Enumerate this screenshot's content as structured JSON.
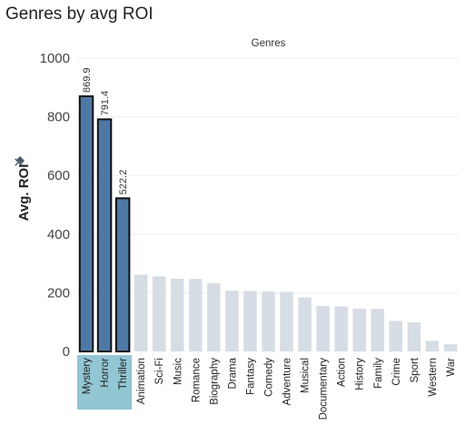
{
  "title": "Genres by avg ROI",
  "pin_icon": "pin-icon",
  "colors": {
    "highlight_bar": "#4e79a7",
    "highlight_stroke": "#111111",
    "dim_bar": "#d6dde4",
    "selected_header_bg": "#93c6d3",
    "grid": "#eeeeee"
  },
  "chart_data": {
    "type": "bar",
    "title": "Genres by avg ROI",
    "header": "Genres",
    "ylabel": "Avg. ROI",
    "xlabel": "",
    "ylim": [
      0,
      1000
    ],
    "yticks": [
      0,
      200,
      400,
      600,
      800,
      1000
    ],
    "grid": true,
    "categories": [
      "Mystery",
      "Horror",
      "Thriller",
      "Animation",
      "Sci-Fi",
      "Music",
      "Romance",
      "Biography",
      "Drama",
      "Fantasy",
      "Comedy",
      "Adventure",
      "Musical",
      "Documentary",
      "Action",
      "History",
      "Family",
      "Crime",
      "Sport",
      "Western",
      "War"
    ],
    "values": [
      869.9,
      791.4,
      522.2,
      262,
      256,
      248,
      247,
      233,
      207,
      206,
      204,
      203,
      184,
      155,
      153,
      146,
      145,
      104,
      99,
      36,
      25
    ],
    "highlighted": [
      true,
      true,
      true,
      false,
      false,
      false,
      false,
      false,
      false,
      false,
      false,
      false,
      false,
      false,
      false,
      false,
      false,
      false,
      false,
      false,
      false
    ],
    "data_labels": [
      "869.9",
      "791.4",
      "522.2",
      "",
      "",
      "",
      "",
      "",
      "",
      "",
      "",
      "",
      "",
      "",
      "",
      "",
      "",
      "",
      "",
      "",
      ""
    ]
  }
}
